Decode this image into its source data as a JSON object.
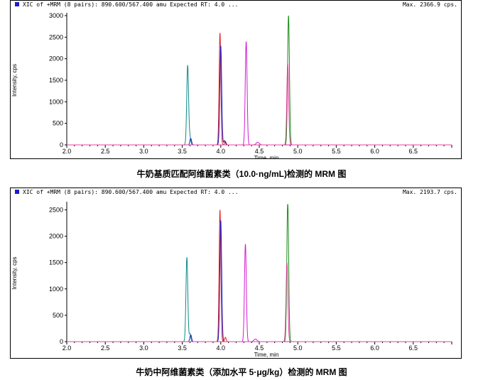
{
  "chart_data": [
    {
      "type": "line",
      "header": "XIC of +MRM (8 pairs): 890.600/567.400 amu Expected RT: 4.0 ...",
      "max_label": "Max. 2366.9 cps.",
      "xlabel": "Time, min",
      "ylabel": "Intensity, cps",
      "xlim": [
        2.0,
        7.0
      ],
      "ylim": [
        0,
        3000
      ],
      "xticks": [
        2.0,
        2.5,
        3.0,
        3.5,
        4.0,
        4.5,
        5.0,
        5.5,
        6.0,
        6.5
      ],
      "yticks": [
        0,
        500,
        1000,
        1500,
        2000,
        2500,
        3000
      ],
      "caption": "牛奶基质匹配阿维菌素类（10.0·ng/mL)检测的 MRM 图",
      "series": [
        {
          "color": "#0e8a8a",
          "peaks": [
            [
              3.57,
              1850,
              0.012
            ],
            [
              3.6,
              170,
              0.01
            ]
          ]
        },
        {
          "color": "#e0201f",
          "peaks": [
            [
              3.99,
              2600,
              0.011
            ],
            [
              4.06,
              80,
              0.01
            ]
          ]
        },
        {
          "color": "#1c1cc8",
          "peaks": [
            [
              4.0,
              2300,
              0.012
            ],
            [
              3.61,
              150,
              0.011
            ],
            [
              4.05,
              100,
              0.01
            ]
          ]
        },
        {
          "color": "#d21cd2",
          "peaks": [
            [
              4.33,
              2400,
              0.012
            ],
            [
              4.48,
              60,
              0.02
            ]
          ]
        },
        {
          "color": "#1a8a1a",
          "peaks": [
            [
              4.88,
              3000,
              0.012
            ]
          ]
        },
        {
          "color": "#e640a0",
          "peaks": [
            [
              4.87,
              1900,
              0.012
            ]
          ]
        }
      ]
    },
    {
      "type": "line",
      "header": "XIC of +MRM (8 pairs): 890.600/567.400 amu Expected RT: 4.0 ...",
      "max_label": "Max. 2193.7 cps.",
      "xlabel": "Time, min",
      "ylabel": "Intensity, cps",
      "xlim": [
        2.0,
        7.0
      ],
      "ylim": [
        0,
        2600
      ],
      "xticks": [
        2.0,
        2.5,
        3.0,
        3.5,
        4.0,
        4.5,
        5.0,
        5.5,
        6.0,
        6.5
      ],
      "yticks": [
        0,
        500,
        1000,
        1500,
        2000,
        2500
      ],
      "caption": "牛奶中阿维菌素类（添加水平 5·μg/kg）检测的 MRM 图",
      "series": [
        {
          "color": "#0e8a8a",
          "peaks": [
            [
              3.56,
              1600,
              0.012
            ],
            [
              3.6,
              150,
              0.01
            ]
          ]
        },
        {
          "color": "#e0201f",
          "peaks": [
            [
              3.99,
              2500,
              0.011
            ],
            [
              4.06,
              80,
              0.01
            ]
          ]
        },
        {
          "color": "#1c1cc8",
          "peaks": [
            [
              4.0,
              2300,
              0.012
            ],
            [
              3.61,
              130,
              0.011
            ]
          ]
        },
        {
          "color": "#d21cd2",
          "peaks": [
            [
              4.32,
              1850,
              0.012
            ],
            [
              4.45,
              50,
              0.02
            ]
          ]
        },
        {
          "color": "#1a8a1a",
          "peaks": [
            [
              4.87,
              2650,
              0.012
            ]
          ]
        },
        {
          "color": "#e640a0",
          "peaks": [
            [
              4.86,
              1500,
              0.012
            ]
          ]
        }
      ]
    }
  ]
}
